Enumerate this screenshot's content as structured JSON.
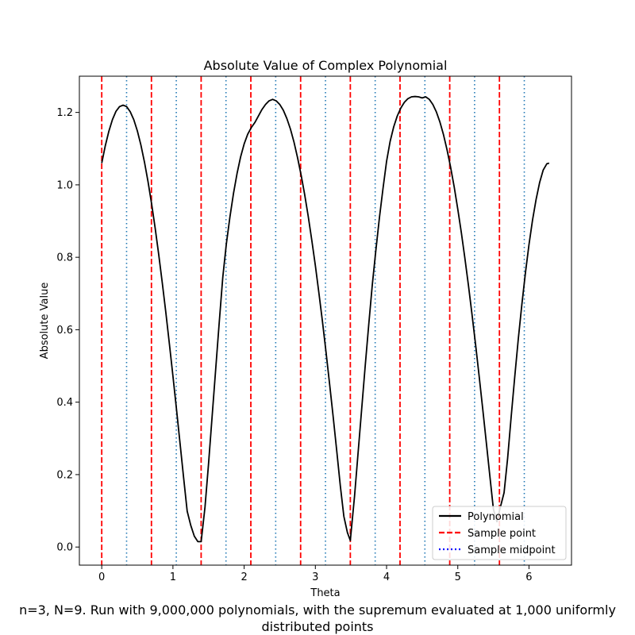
{
  "chart_data": {
    "type": "line",
    "title": "Absolute Value of Complex Polynomial",
    "xlabel": "Theta",
    "ylabel": "Absolute Value",
    "xlim": [
      -0.314,
      6.597
    ],
    "ylim": [
      -0.05,
      1.3
    ],
    "xticks": [
      0,
      1,
      2,
      3,
      4,
      5,
      6
    ],
    "yticks": [
      0.0,
      0.2,
      0.4,
      0.6,
      0.8,
      1.0,
      1.2
    ],
    "grid": false,
    "legend_position": "lower-right",
    "series": [
      {
        "name": "Polynomial",
        "style": "solid",
        "color": "#000000",
        "x": [
          0.0,
          0.05,
          0.1,
          0.15,
          0.2,
          0.25,
          0.3,
          0.35,
          0.4,
          0.45,
          0.5,
          0.55,
          0.6,
          0.65,
          0.7,
          0.75,
          0.8,
          0.85,
          0.9,
          0.95,
          1.0,
          1.05,
          1.1,
          1.15,
          1.2,
          1.25,
          1.3,
          1.35,
          1.396,
          1.45,
          1.5,
          1.55,
          1.6,
          1.65,
          1.7,
          1.75,
          1.8,
          1.85,
          1.9,
          1.95,
          2.0,
          2.05,
          2.1,
          2.15,
          2.2,
          2.25,
          2.3,
          2.35,
          2.4,
          2.45,
          2.5,
          2.55,
          2.6,
          2.65,
          2.7,
          2.75,
          2.8,
          2.85,
          2.9,
          2.95,
          3.0,
          3.05,
          3.1,
          3.15,
          3.2,
          3.25,
          3.3,
          3.35,
          3.4,
          3.45,
          3.491,
          3.55,
          3.6,
          3.65,
          3.7,
          3.75,
          3.8,
          3.85,
          3.9,
          3.95,
          4.0,
          4.05,
          4.1,
          4.15,
          4.2,
          4.25,
          4.3,
          4.35,
          4.4,
          4.45,
          4.5,
          4.55,
          4.6,
          4.65,
          4.7,
          4.75,
          4.8,
          4.85,
          4.9,
          4.95,
          5.0,
          5.05,
          5.1,
          5.15,
          5.2,
          5.25,
          5.3,
          5.35,
          5.4,
          5.45,
          5.5,
          5.55,
          5.585,
          5.65,
          5.7,
          5.75,
          5.8,
          5.85,
          5.9,
          5.95,
          6.0,
          6.05,
          6.1,
          6.15,
          6.2,
          6.25,
          6.283
        ],
        "values": [
          1.06,
          1.108,
          1.148,
          1.18,
          1.203,
          1.216,
          1.22,
          1.216,
          1.202,
          1.18,
          1.149,
          1.11,
          1.063,
          1.009,
          0.948,
          0.881,
          0.808,
          0.73,
          0.648,
          0.561,
          0.472,
          0.38,
          0.286,
          0.191,
          0.099,
          0.06,
          0.03,
          0.015,
          0.015,
          0.11,
          0.23,
          0.36,
          0.49,
          0.62,
          0.745,
          0.837,
          0.911,
          0.976,
          1.031,
          1.077,
          1.113,
          1.14,
          1.158,
          1.172,
          1.19,
          1.208,
          1.222,
          1.232,
          1.236,
          1.232,
          1.222,
          1.206,
          1.183,
          1.154,
          1.118,
          1.075,
          1.027,
          0.973,
          0.913,
          0.847,
          0.777,
          0.701,
          0.622,
          0.538,
          0.45,
          0.36,
          0.266,
          0.17,
          0.085,
          0.04,
          0.018,
          0.14,
          0.26,
          0.38,
          0.5,
          0.615,
          0.725,
          0.82,
          0.91,
          0.99,
          1.065,
          1.12,
          1.16,
          1.19,
          1.212,
          1.228,
          1.238,
          1.243,
          1.244,
          1.243,
          1.24,
          1.243,
          1.236,
          1.222,
          1.201,
          1.173,
          1.138,
          1.096,
          1.048,
          0.994,
          0.933,
          0.868,
          0.797,
          0.722,
          0.642,
          0.559,
          0.472,
          0.382,
          0.29,
          0.197,
          0.105,
          0.07,
          0.1,
          0.15,
          0.245,
          0.36,
          0.47,
          0.575,
          0.67,
          0.757,
          0.835,
          0.903,
          0.96,
          1.007,
          1.041,
          1.058,
          1.06
        ]
      }
    ],
    "sample_points": {
      "name": "Sample point",
      "style": "dashed",
      "color": "#ff0000",
      "x": [
        0.0,
        0.698,
        1.396,
        2.094,
        2.793,
        3.491,
        4.189,
        4.887,
        5.585
      ]
    },
    "sample_midpoints": {
      "name": "Sample midpoint",
      "style": "dotted",
      "color": "#1f77b4",
      "legend_color": "#0000ff",
      "x": [
        0.349,
        1.047,
        1.745,
        2.443,
        3.142,
        3.84,
        4.538,
        5.236,
        5.934
      ]
    }
  },
  "caption": {
    "line1": "n=3, N=9. Run with 9,000,000 polynomials, with the supremum evaluated at 1,000 uniformly",
    "line2": "distributed points"
  }
}
